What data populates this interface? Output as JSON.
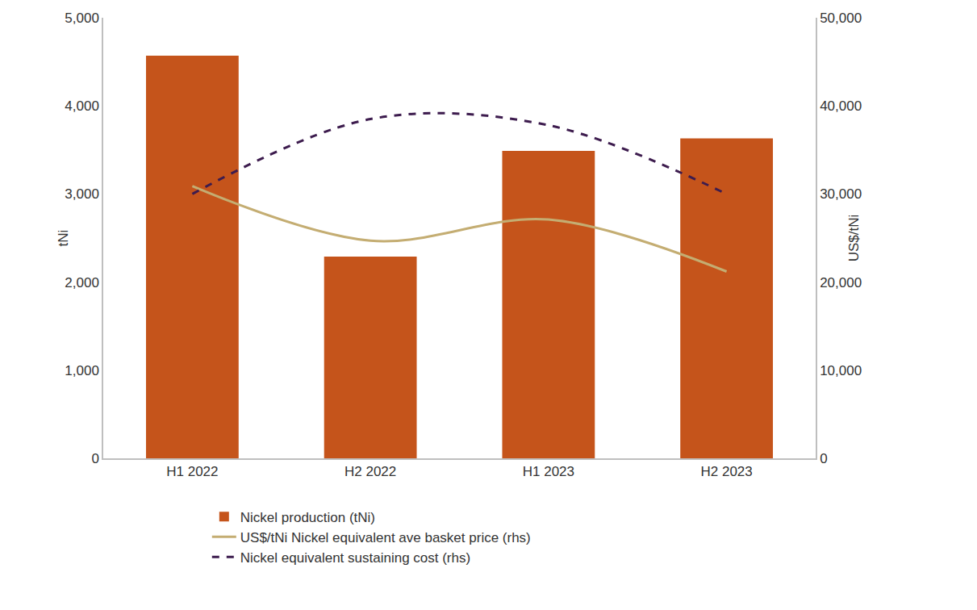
{
  "chart_data": {
    "type": "bar",
    "categories": [
      "H1 2022",
      "H2 2022",
      "H1 2023",
      "H2 2023"
    ],
    "y_label": "tNi",
    "y2_label": "US$/tNi",
    "ylim": [
      0,
      5000
    ],
    "yticks": [
      0,
      {
        "value": 1000,
        "label": "1,000"
      },
      {
        "value": 2000,
        "label": "2,000"
      },
      {
        "value": 3000,
        "label": "3,000"
      },
      {
        "value": 4000,
        "label": "4,000"
      },
      {
        "value": 5000,
        "label": "5,000"
      }
    ],
    "y2lim": [
      0,
      50000
    ],
    "y2ticks": [
      0,
      {
        "value": 10000,
        "label": "10,000"
      },
      {
        "value": 20000,
        "label": "20,000"
      },
      {
        "value": 30000,
        "label": "30,000"
      },
      {
        "value": 40000,
        "label": "40,000"
      },
      {
        "value": 50000,
        "label": "50,000"
      }
    ],
    "grid": false,
    "legend": "bottom",
    "series": [
      {
        "name": "Nickel production (tNi)",
        "type": "bar",
        "color": "#C5541B",
        "values": [
          4570,
          2290,
          3490,
          3630
        ]
      },
      {
        "name": "US$/tNi Nickel equivalent ave basket price (rhs)",
        "type": "line",
        "axis": "y2",
        "color": "#C4AD72",
        "line_style": "solid",
        "values": [
          30900,
          24700,
          27100,
          21200
        ]
      },
      {
        "name": "Nickel equivalent sustaining cost (rhs)",
        "type": "line",
        "axis": "y2",
        "color": "#3D1C4E",
        "line_style": "dash",
        "values": [
          30000,
          38500,
          37800,
          30000
        ]
      }
    ]
  }
}
